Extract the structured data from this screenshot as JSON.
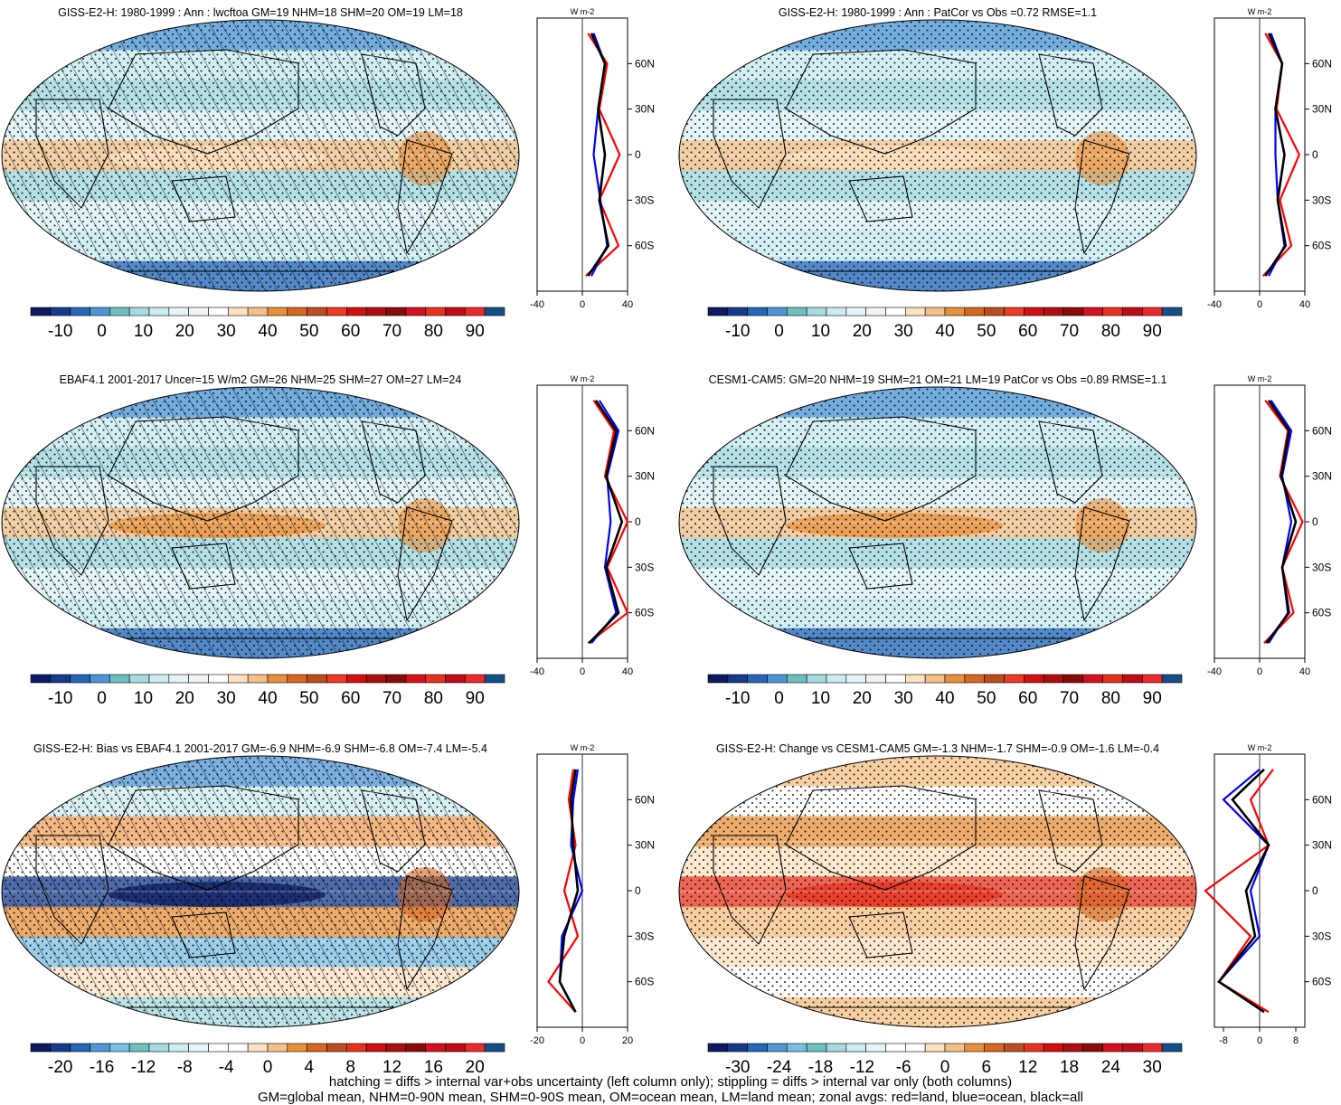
{
  "colors": {
    "scale": [
      "#0b1a63",
      "#153b8c",
      "#2466b8",
      "#4f95d6",
      "#79bfe4",
      "#6dc0bf",
      "#a6dbe0",
      "#cdeef1",
      "#e6f6f8",
      "#f2f2f2",
      "#ffffff",
      "#fde2c1",
      "#f5c086",
      "#e8903c",
      "#d5671e",
      "#bb4e1c",
      "#e8331c",
      "#d21010",
      "#ad0e0e",
      "#8b0b0b",
      "#d6111d",
      "#bf0d18",
      "#ec2a2a",
      "#154f8a"
    ],
    "ocean_base": "#dff2f6",
    "land_line": "#000000",
    "profile_land": "#ff0000",
    "profile_ocean": "#0000ff",
    "profile_all": "#000000"
  },
  "panels": [
    {
      "title": "GISS-E2-H: 1980-1999 : Ann : lwcftoa GM=19 NHM=18 SHM=20 OM=19 LM=18",
      "colorbar_labels": [
        "-10",
        "0",
        "10",
        "20",
        "30",
        "40",
        "50",
        "60",
        "70",
        "80",
        "90"
      ],
      "profile_xticks": [
        "-40",
        "0",
        "40"
      ],
      "unit": "W m-2"
    },
    {
      "title": "GISS-E2-H: 1980-1999 : Ann : PatCor vs Obs =0.72 RMSE=1.1",
      "colorbar_labels": [
        "-10",
        "0",
        "10",
        "20",
        "30",
        "40",
        "50",
        "60",
        "70",
        "80",
        "90"
      ],
      "profile_xticks": [
        "-40",
        "0",
        "40"
      ],
      "unit": "W m-2"
    },
    {
      "title": "EBAF4.1 2001-2017 Uncer=15 W/m2 GM=26 NHM=25 SHM=27 OM=27 LM=24",
      "colorbar_labels": [
        "-10",
        "0",
        "10",
        "20",
        "30",
        "40",
        "50",
        "60",
        "70",
        "80",
        "90"
      ],
      "profile_xticks": [
        "-40",
        "0",
        "40"
      ],
      "unit": "W m-2"
    },
    {
      "title": "CESM1-CAM5: GM=20 NHM=19 SHM=21 OM=21 LM=19 PatCor vs Obs =0.89 RMSE=1.1",
      "colorbar_labels": [
        "-10",
        "0",
        "10",
        "20",
        "30",
        "40",
        "50",
        "60",
        "70",
        "80",
        "90"
      ],
      "profile_xticks": [
        "-40",
        "0",
        "40"
      ],
      "unit": "W m-2"
    },
    {
      "title": "GISS-E2-H: Bias vs EBAF4.1 2001-2017 GM=-6.9 NHM=-6.9 SHM=-6.8 OM=-7.4 LM=-5.4",
      "colorbar_labels": [
        "-20",
        "-16",
        "-12",
        "-8",
        "-4",
        "0",
        "4",
        "8",
        "12",
        "16",
        "20"
      ],
      "profile_xticks": [
        "-20",
        "0",
        "20"
      ],
      "unit": "W m-2"
    },
    {
      "title": "GISS-E2-H: Change vs CESM1-CAM5 GM=-1.3 NHM=-1.7 SHM=-0.9 OM=-1.6 LM=-0.4",
      "colorbar_labels": [
        "-30",
        "-24",
        "-18",
        "-12",
        "-6",
        "0",
        "6",
        "12",
        "18",
        "24",
        "30"
      ],
      "profile_xticks": [
        "-8",
        "0",
        "8"
      ],
      "unit": "W m-2"
    }
  ],
  "lat_ticks": [
    "60N",
    "30N",
    "0",
    "30S",
    "60S"
  ],
  "footnote": {
    "line1": "hatching = diffs > internal var+obs uncertainty (left column only); stippling = diffs > internal var only (both columns)",
    "line2": "GM=global mean, NHM=0-90N mean, SHM=0-90S mean, OM=ocean mean, LM=land mean; zonal avgs: red=land, blue=ocean, black=all"
  },
  "chart_data": [
    {
      "type": "heatmap",
      "title": "GISS-E2-H: 1980-1999 : Ann : lwcftoa GM=19 NHM=18 SHM=20 OM=19 LM=18",
      "colorbar": [
        -10,
        0,
        10,
        20,
        30,
        40,
        50,
        60,
        70,
        80,
        90
      ],
      "zonal_profile": {
        "lat": [
          80,
          60,
          30,
          0,
          -30,
          -60,
          -80
        ],
        "land": [
          5,
          22,
          15,
          33,
          15,
          32,
          3
        ],
        "ocean": [
          10,
          20,
          14,
          10,
          16,
          22,
          8
        ],
        "all": [
          8,
          20,
          14,
          20,
          15,
          23,
          5
        ],
        "xlim": [
          -40,
          40
        ]
      }
    },
    {
      "type": "heatmap",
      "title": "GISS-E2-H: 1980-1999 : Ann : PatCor vs Obs =0.72 RMSE=1.1",
      "colorbar": [
        -10,
        0,
        10,
        20,
        30,
        40,
        50,
        60,
        70,
        80,
        90
      ],
      "zonal_profile": {
        "lat": [
          80,
          60,
          30,
          0,
          -30,
          -60,
          -80
        ],
        "land": [
          5,
          20,
          15,
          35,
          18,
          28,
          3
        ],
        "ocean": [
          10,
          20,
          14,
          14,
          16,
          22,
          8
        ],
        "all": [
          8,
          20,
          14,
          22,
          16,
          23,
          5
        ],
        "xlim": [
          -40,
          40
        ]
      }
    },
    {
      "type": "heatmap",
      "title": "EBAF4.1 2001-2017 Uncer=15 W/m2 GM=26 NHM=25 SHM=27 OM=27 LM=24",
      "colorbar": [
        -10,
        0,
        10,
        20,
        30,
        40,
        50,
        60,
        70,
        80,
        90
      ],
      "zonal_profile": {
        "lat": [
          80,
          60,
          30,
          0,
          -30,
          -60,
          -80
        ],
        "land": [
          10,
          28,
          20,
          40,
          22,
          40,
          5
        ],
        "ocean": [
          15,
          32,
          22,
          25,
          20,
          30,
          8
        ],
        "all": [
          12,
          30,
          21,
          35,
          21,
          32,
          6
        ],
        "xlim": [
          -40,
          40
        ]
      }
    },
    {
      "type": "heatmap",
      "title": "CESM1-CAM5: GM=20 NHM=19 SHM=21 OM=21 LM=19 PatCor vs Obs =0.89 RMSE=1.1",
      "colorbar": [
        -10,
        0,
        10,
        20,
        30,
        40,
        50,
        60,
        70,
        80,
        90
      ],
      "zonal_profile": {
        "lat": [
          80,
          60,
          30,
          0,
          -30,
          -60,
          -80
        ],
        "land": [
          5,
          25,
          18,
          38,
          20,
          30,
          4
        ],
        "ocean": [
          10,
          28,
          20,
          28,
          20,
          25,
          8
        ],
        "all": [
          8,
          26,
          19,
          32,
          20,
          26,
          6
        ],
        "xlim": [
          -40,
          40
        ]
      }
    },
    {
      "type": "heatmap",
      "title": "GISS-E2-H: Bias vs EBAF4.1 2001-2017 GM=-6.9 NHM=-6.9 SHM=-6.8 OM=-7.4 LM=-5.4",
      "colorbar": [
        -20,
        -16,
        -12,
        -8,
        -4,
        0,
        4,
        8,
        12,
        16,
        20
      ],
      "zonal_profile": {
        "lat": [
          80,
          60,
          30,
          0,
          -30,
          -60,
          -80
        ],
        "land": [
          -4,
          -6,
          -3,
          -8,
          -2,
          -15,
          -3
        ],
        "ocean": [
          -2,
          -4,
          -5,
          0,
          -9,
          -10,
          -3
        ],
        "all": [
          -3,
          -5,
          -4,
          -2,
          -8,
          -10,
          -3
        ],
        "xlim": [
          -20,
          20
        ]
      }
    },
    {
      "type": "heatmap",
      "title": "GISS-E2-H: Change vs CESM1-CAM5 GM=-1.3 NHM=-1.7 SHM=-0.9 OM=-1.6 LM=-0.4",
      "colorbar": [
        -30,
        -24,
        -18,
        -12,
        -6,
        0,
        6,
        12,
        18,
        24,
        30
      ],
      "zonal_profile": {
        "lat": [
          80,
          60,
          30,
          0,
          -30,
          -60,
          -80
        ],
        "land": [
          3,
          -2,
          2,
          -12,
          -2,
          -9,
          2
        ],
        "ocean": [
          0,
          -8,
          2,
          -2,
          0,
          -9,
          1
        ],
        "all": [
          1,
          -6,
          2,
          -3,
          -1,
          -9,
          1
        ],
        "xlim": [
          -10,
          10
        ]
      }
    }
  ]
}
